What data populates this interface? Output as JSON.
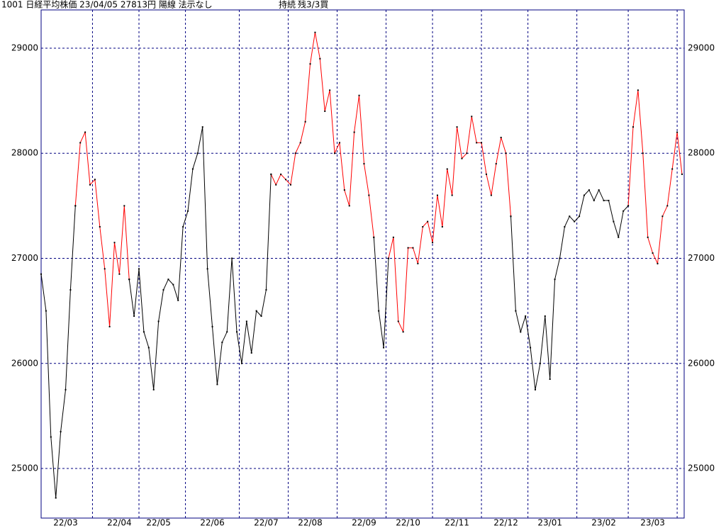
{
  "chart_data": {
    "type": "line",
    "title": "1001 日経平均株価 23/04/05 27813円 陽線 法示なし",
    "status": "持続",
    "position": "残3/3買",
    "categories": [
      null,
      null,
      null,
      null,
      null,
      "22/03",
      null,
      null,
      null,
      null,
      null,
      null,
      null,
      null,
      null,
      null,
      "22/04",
      null,
      null,
      null,
      null,
      null,
      null,
      null,
      "22/05",
      null,
      null,
      null,
      null,
      null,
      null,
      null,
      null,
      null,
      null,
      "22/06",
      null,
      null,
      null,
      null,
      null,
      null,
      null,
      null,
      null,
      null,
      "22/07",
      null,
      null,
      null,
      null,
      null,
      null,
      null,
      null,
      "22/08",
      null,
      null,
      null,
      null,
      null,
      null,
      null,
      null,
      null,
      null,
      "22/09",
      null,
      null,
      null,
      null,
      null,
      null,
      null,
      null,
      "22/10",
      null,
      null,
      null,
      null,
      null,
      null,
      null,
      null,
      null,
      "22/11",
      null,
      null,
      null,
      null,
      null,
      null,
      null,
      null,
      null,
      "22/12",
      null,
      null,
      null,
      null,
      null,
      null,
      null,
      null,
      "23/01",
      null,
      null,
      null,
      null,
      null,
      null,
      null,
      null,
      null,
      null,
      "23/02",
      null,
      null,
      null,
      null,
      null,
      null,
      null,
      null,
      null,
      "23/03",
      null,
      null,
      null,
      null,
      null,
      null
    ],
    "series": [
      {
        "color": "#000000",
        "values": [
          26850,
          26500,
          25300,
          24720,
          25350,
          25750,
          26700,
          27500,
          null,
          null,
          null,
          null,
          null,
          null,
          null,
          null,
          null,
          null,
          26800,
          26450,
          26900,
          26300,
          26150,
          25750,
          26400,
          26700,
          26800,
          26750,
          26600,
          27300,
          27450,
          27850,
          28000,
          28250,
          26900,
          26350,
          25800,
          26200,
          26300,
          27000,
          26300,
          26000,
          26400,
          26100,
          26500,
          26450,
          26700,
          27800,
          null,
          null,
          null,
          null,
          null,
          null,
          null,
          null,
          null,
          null,
          null,
          null,
          null,
          null,
          null,
          null,
          null,
          null,
          null,
          null,
          27200,
          26500,
          26150,
          27000,
          null,
          null,
          null,
          null,
          null,
          null,
          null,
          null,
          null,
          null,
          null,
          null,
          null,
          null,
          null,
          null,
          null,
          null,
          null,
          null,
          null,
          null,
          null,
          null,
          27400,
          26500,
          26300,
          26450,
          26150,
          25750,
          26000,
          26450,
          25850,
          26800,
          27000,
          27300,
          27400,
          27350,
          27400,
          27600,
          27650,
          27550,
          27650,
          27550,
          27550,
          27350,
          27200,
          27450,
          27500,
          null,
          null,
          null,
          null,
          null,
          null,
          null,
          null,
          null,
          null,
          null
        ]
      },
      {
        "color": "#ff0000",
        "values": [
          null,
          null,
          null,
          null,
          null,
          null,
          null,
          27500,
          28100,
          28200,
          27700,
          27750,
          27300,
          26900,
          26350,
          27150,
          26850,
          27500,
          26800,
          null,
          null,
          null,
          null,
          null,
          null,
          null,
          null,
          null,
          null,
          null,
          null,
          null,
          null,
          null,
          null,
          null,
          null,
          null,
          null,
          null,
          null,
          null,
          null,
          null,
          null,
          null,
          null,
          27800,
          27700,
          27800,
          27750,
          27700,
          28000,
          28100,
          28300,
          28850,
          29150,
          28900,
          28400,
          28600,
          28000,
          28100,
          27650,
          27500,
          28200,
          28550,
          27900,
          27600,
          27200,
          null,
          null,
          27000,
          27200,
          26400,
          26300,
          27100,
          27100,
          26950,
          27300,
          27350,
          27150,
          27600,
          27300,
          27850,
          27600,
          28250,
          27950,
          28000,
          28350,
          28100,
          28100,
          27800,
          27600,
          27900,
          28150,
          28000,
          27400,
          null,
          null,
          null,
          null,
          null,
          null,
          null,
          null,
          null,
          null,
          null,
          null,
          null,
          null,
          null,
          null,
          null,
          null,
          null,
          null,
          null,
          null,
          null,
          27500,
          28250,
          28600,
          28000,
          27200,
          27050,
          26950,
          27400,
          27500,
          27850,
          28200,
          27800
        ]
      }
    ],
    "marker_color": "#000000",
    "grid_color": "#000080",
    "ylim": [
      24528,
      29364
    ],
    "yticks": [
      25000,
      26000,
      27000,
      28000,
      29000
    ],
    "grid": true
  }
}
